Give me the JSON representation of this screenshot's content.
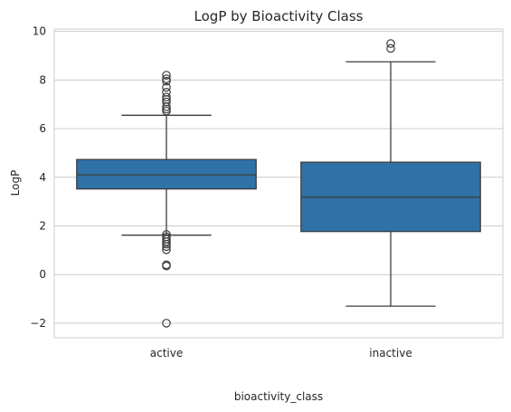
{
  "chart_data": {
    "type": "box",
    "title": "LogP by Bioactivity Class",
    "xlabel": "bioactivity_class",
    "ylabel": "LogP",
    "ylim": [
      -2.6,
      10.1
    ],
    "yticks": [
      -2,
      0,
      2,
      4,
      6,
      8,
      10
    ],
    "grid": true,
    "color": "#2e72a8",
    "categories": [
      "active",
      "inactive"
    ],
    "boxes": [
      {
        "category": "active",
        "whisker_low": 1.62,
        "q1": 3.52,
        "median": 4.1,
        "q3": 4.73,
        "whisker_high": 6.55,
        "outliers": [
          8.2,
          8.05,
          7.95,
          7.7,
          7.5,
          7.3,
          7.2,
          7.1,
          6.9,
          6.8,
          6.72,
          1.65,
          1.55,
          1.45,
          1.35,
          1.25,
          1.15,
          1.02,
          0.4,
          0.35,
          -2.0
        ]
      },
      {
        "category": "inactive",
        "whisker_low": -1.3,
        "q1": 1.77,
        "median": 3.18,
        "q3": 4.62,
        "whisker_high": 8.75,
        "outliers": [
          9.5,
          9.3
        ]
      }
    ]
  }
}
